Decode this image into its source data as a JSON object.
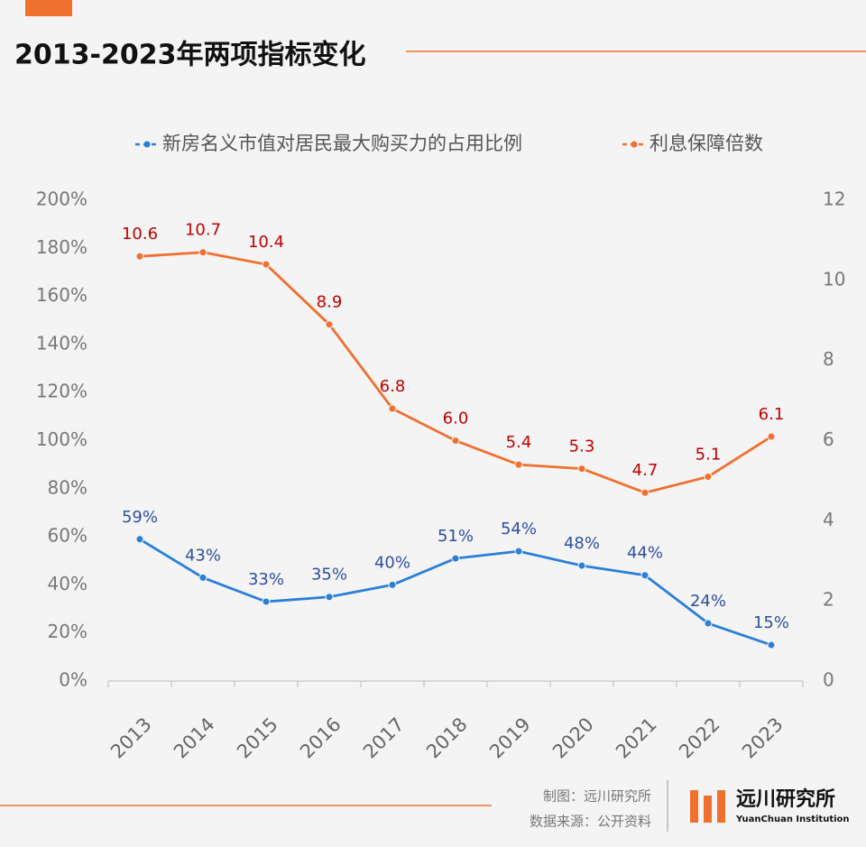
{
  "chart_data": {
    "type": "line",
    "title": "2013-2023年两项指标变化",
    "categories": [
      "2013",
      "2014",
      "2015",
      "2016",
      "2017",
      "2018",
      "2019",
      "2020",
      "2021",
      "2022",
      "2023"
    ],
    "series": [
      {
        "name": "新房名义市值对居民最大购买力的占用比例",
        "color": "#2a7fd8",
        "label_color": "#2f4f9f",
        "axis": "y",
        "values": [
          59,
          43,
          33,
          35,
          40,
          51,
          54,
          48,
          44,
          24,
          15
        ],
        "value_labels": [
          "59%",
          "43%",
          "33%",
          "35%",
          "40%",
          "51%",
          "54%",
          "48%",
          "44%",
          "24%",
          "15%"
        ]
      },
      {
        "name": "利息保障倍数",
        "color": "#f07030",
        "label_color": "#c00000",
        "axis": "y2",
        "values": [
          10.6,
          10.7,
          10.4,
          8.9,
          6.8,
          6.0,
          5.4,
          5.3,
          4.7,
          5.1,
          6.1
        ],
        "value_labels": [
          "10.6",
          "10.7",
          "10.4",
          "8.9",
          "6.8",
          "6.0",
          "5.4",
          "5.3",
          "4.7",
          "5.1",
          "6.1"
        ]
      }
    ],
    "ylim": [
      0,
      200
    ],
    "yticks": [
      {
        "value": 0,
        "label": "0%"
      },
      {
        "value": 20,
        "label": "20%"
      },
      {
        "value": 40,
        "label": "40%"
      },
      {
        "value": 60,
        "label": "60%"
      },
      {
        "value": 80,
        "label": "80%"
      },
      {
        "value": 100,
        "label": "100%"
      },
      {
        "value": 120,
        "label": "120%"
      },
      {
        "value": 140,
        "label": "140%"
      },
      {
        "value": 160,
        "label": "160%"
      },
      {
        "value": 180,
        "label": "180%"
      },
      {
        "value": 200,
        "label": "200%"
      }
    ],
    "y2lim": [
      0,
      12
    ],
    "y2ticks": [
      0,
      2,
      4,
      6,
      8,
      10,
      12
    ],
    "grid": false,
    "legend": "top",
    "credit": "制图：远川研究所",
    "source": "数据来源：公开资料",
    "logo_text": "远川研究所",
    "logo_subtext": "YuanChuan Institution"
  }
}
